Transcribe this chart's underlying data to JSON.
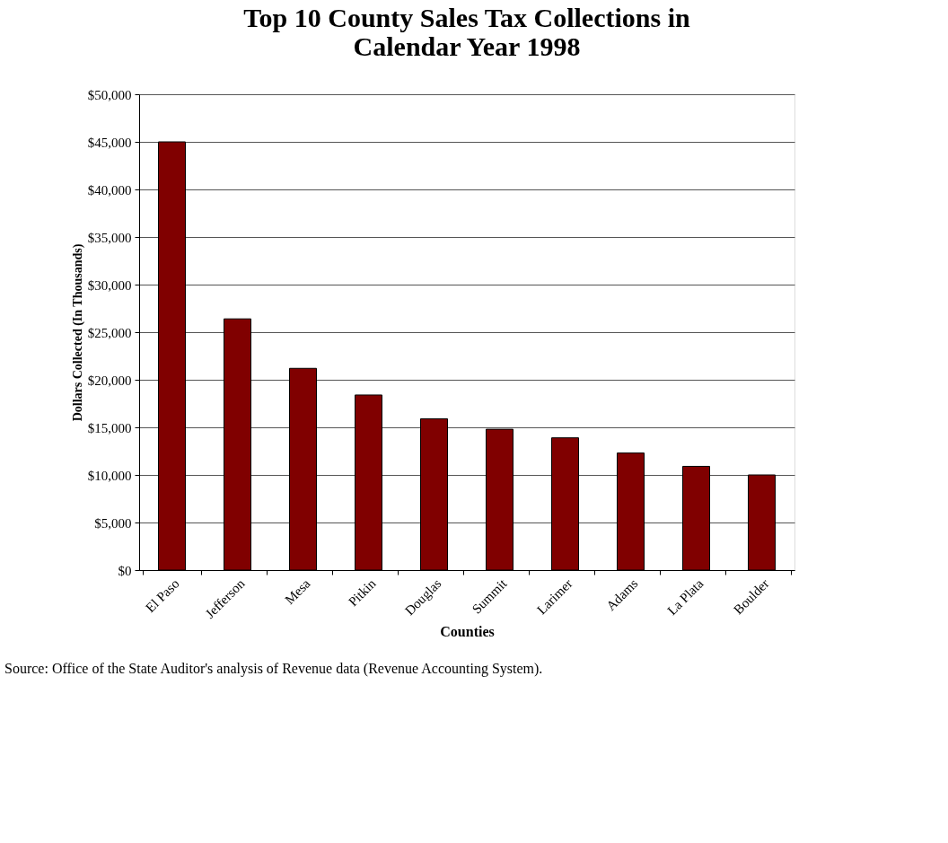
{
  "chart_data": {
    "type": "bar",
    "title": [
      "Top 10 County Sales Tax Collections in",
      "Calendar Year 1998"
    ],
    "xlabel": "Counties",
    "ylabel": "Dollars Collected (In Thousands)",
    "categories": [
      "El Paso",
      "Jefferson",
      "Mesa",
      "Pitkin",
      "Douglas",
      "Summit",
      "Larimer",
      "Adams",
      "La Plata",
      "Boulder"
    ],
    "values": [
      45000,
      26400,
      21200,
      18400,
      15900,
      14800,
      13900,
      12300,
      10900,
      10000
    ],
    "color": "#800000",
    "ylim": [
      0,
      50000
    ],
    "yticks": [
      {
        "value": 0,
        "label": "$0"
      },
      {
        "value": 5000,
        "label": "$5,000"
      },
      {
        "value": 10000,
        "label": "$10,000"
      },
      {
        "value": 15000,
        "label": "$15,000"
      },
      {
        "value": 20000,
        "label": "$20,000"
      },
      {
        "value": 25000,
        "label": "$25,000"
      },
      {
        "value": 30000,
        "label": "$30,000"
      },
      {
        "value": 35000,
        "label": "$35,000"
      },
      {
        "value": 40000,
        "label": "$40,000"
      },
      {
        "value": 45000,
        "label": "$45,000"
      },
      {
        "value": 50000,
        "label": "$50,000"
      }
    ],
    "grid": "y",
    "annotations": [
      "Source: Office of the State Auditor's analysis of Revenue data (Revenue Accounting System)."
    ]
  }
}
